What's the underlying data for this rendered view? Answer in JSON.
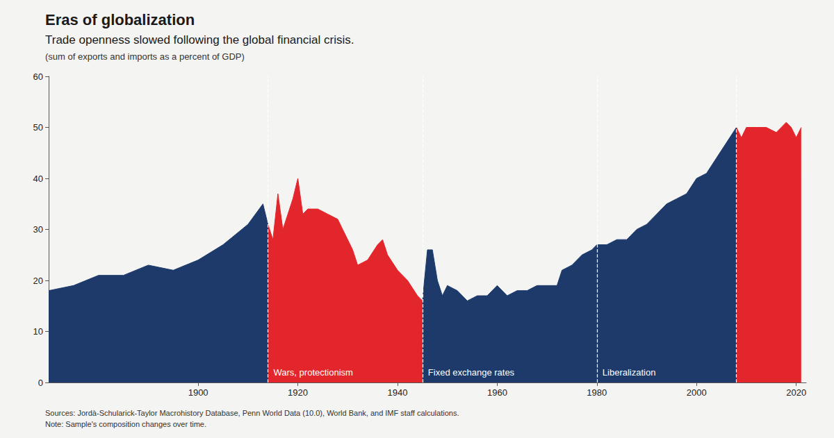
{
  "chart_data": {
    "type": "area",
    "title": "Eras of globalization",
    "subtitle": "Trade openness slowed following the global financial crisis.",
    "ylabel": "(sum of exports and imports as a percent of GDP)",
    "source": "Sources: Jordà-Schularick-Taylor Macrohistory Database, Penn World Data (10.0), World Bank, and IMF staff calculations.",
    "note": "Note: Sample's composition changes over time.",
    "x": [
      1870,
      1875,
      1880,
      1885,
      1890,
      1895,
      1900,
      1905,
      1910,
      1913,
      1914,
      1915,
      1916,
      1917,
      1918,
      1919,
      1920,
      1921,
      1922,
      1924,
      1926,
      1928,
      1929,
      1931,
      1932,
      1934,
      1936,
      1937,
      1938,
      1940,
      1942,
      1944,
      1945,
      1946,
      1947,
      1948,
      1949,
      1950,
      1952,
      1954,
      1956,
      1958,
      1960,
      1962,
      1964,
      1966,
      1968,
      1970,
      1972,
      1973,
      1975,
      1977,
      1979,
      1980,
      1982,
      1984,
      1986,
      1988,
      1990,
      1992,
      1994,
      1996,
      1998,
      2000,
      2002,
      2004,
      2006,
      2008,
      2009,
      2010,
      2012,
      2014,
      2016,
      2018,
      2019,
      2020,
      2021
    ],
    "values": [
      18,
      19,
      21,
      21,
      23,
      22,
      24,
      27,
      31,
      35,
      31,
      28,
      37,
      30,
      33,
      36,
      40,
      33,
      34,
      34,
      33,
      32,
      30,
      26,
      23,
      24,
      27,
      28,
      25,
      22,
      20,
      17,
      16,
      26,
      26,
      20,
      17,
      19,
      18,
      16,
      17,
      17,
      19,
      17,
      18,
      18,
      19,
      19,
      19,
      22,
      23,
      25,
      26,
      27,
      27,
      28,
      28,
      30,
      31,
      33,
      35,
      36,
      37,
      40,
      41,
      44,
      47,
      50,
      48,
      50,
      50,
      50,
      49,
      51,
      50,
      48,
      50
    ],
    "eras": [
      {
        "start": 1870,
        "end": 1914,
        "color": "#1d3a6b"
      },
      {
        "start": 1914,
        "end": 1945,
        "color": "#e3262b",
        "label": "Wars, protectionism"
      },
      {
        "start": 1945,
        "end": 1980,
        "color": "#1d3a6b",
        "label": "Fixed exchange rates"
      },
      {
        "start": 1980,
        "end": 2008,
        "color": "#1d3a6b",
        "label": "Liberalization"
      },
      {
        "start": 2008,
        "end": 2021,
        "color": "#e3262b"
      }
    ],
    "xlim": [
      1870,
      2022
    ],
    "xticks": [
      1900,
      1920,
      1940,
      1960,
      1980,
      2000,
      2020
    ],
    "ylim": [
      0,
      60
    ],
    "yticks": [
      0,
      10,
      20,
      30,
      40,
      50,
      60
    ],
    "grid": false
  }
}
